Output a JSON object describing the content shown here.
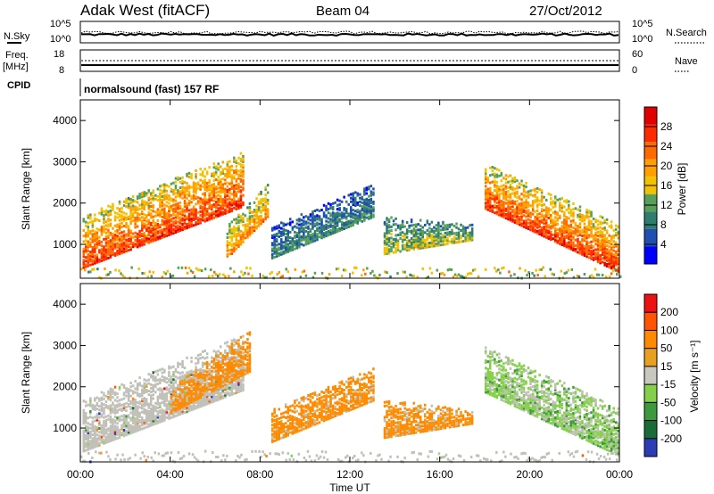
{
  "header": {
    "station": "Adak West (fitACF)",
    "beam": "Beam 04",
    "date": "27/Oct/2012"
  },
  "status_panels": {
    "nsky_label": "N.Sky",
    "nsearch_label": "N.Search",
    "left_ticks_top": [
      "10^5",
      "10^0"
    ],
    "right_ticks_top": [
      "10^5",
      "10^0"
    ],
    "freq_label": "Freq.",
    "freq_unit": "[MHz]",
    "freq_ticks": [
      "18",
      "8"
    ],
    "nave_label": "Nave",
    "nave_ticks": [
      "60",
      "0"
    ],
    "cpid_label": "CPID",
    "cpid_value": "normalsound (fast) 157 RF"
  },
  "colors": {
    "power_scale": [
      "#0000ff",
      "#1f4fb0",
      "#2e7d6e",
      "#57a05a",
      "#f2c200",
      "#ffa000",
      "#ff6a00",
      "#ff2a00",
      "#e00000"
    ],
    "velocity_scale": [
      "#2c3cb5",
      "#1a6b3a",
      "#3c9a3c",
      "#84d04a",
      "#c8c8c0",
      "#e8a020",
      "#ff8a00",
      "#ff5500",
      "#ee1111"
    ],
    "ground_scatter": "#c0c0b8"
  },
  "chart_data": [
    {
      "type": "heatmap",
      "panel": "power",
      "ylabel": "Slant Range [km]",
      "xlabel": "",
      "x_ticks": [
        "00:00",
        "04:00",
        "08:00",
        "12:00",
        "16:00",
        "20:00",
        "00:00"
      ],
      "xlim_hours": [
        0,
        24
      ],
      "y_ticks": [
        1000,
        2000,
        3000,
        4000
      ],
      "ylim": [
        180,
        4500
      ],
      "colorbar": {
        "label": "Power [dB]",
        "ticks": [
          4,
          8,
          12,
          16,
          20,
          24,
          28
        ]
      },
      "regions": [
        {
          "t0": 0.0,
          "t1": 7.2,
          "r0_start": 450,
          "r0_end": 1950,
          "r1_start": 1700,
          "r1_end": 3300,
          "level": 0.8
        },
        {
          "t0": 6.5,
          "t1": 8.3,
          "r0_start": 700,
          "r0_end": 1700,
          "r1_start": 1500,
          "r1_end": 2500,
          "level": 0.65
        },
        {
          "t0": 8.5,
          "t1": 13.0,
          "r0_start": 700,
          "r0_end": 1700,
          "r1_start": 1500,
          "r1_end": 2500,
          "level": 0.3
        },
        {
          "t0": 13.5,
          "t1": 17.5,
          "r0_start": 800,
          "r0_end": 1150,
          "r1_start": 1700,
          "r1_end": 1500,
          "level": 0.45
        },
        {
          "t0": 18.0,
          "t1": 24.0,
          "r0_start": 1900,
          "r0_end": 350,
          "r1_start": 3000,
          "r1_end": 1500,
          "level": 0.8
        }
      ]
    },
    {
      "type": "heatmap",
      "panel": "velocity",
      "ylabel": "Slant Range [km]",
      "xlabel": "Time UT",
      "x_ticks": [
        "00:00",
        "04:00",
        "08:00",
        "12:00",
        "16:00",
        "20:00",
        "00:00"
      ],
      "xlim_hours": [
        0,
        24
      ],
      "y_ticks": [
        1000,
        2000,
        3000,
        4000
      ],
      "ylim": [
        180,
        4500
      ],
      "colorbar": {
        "label": "Velocity [m s⁻¹]",
        "ticks": [
          200,
          100,
          50,
          15,
          -15,
          -50,
          -100,
          -200
        ]
      },
      "regions": [
        {
          "t0": 0.0,
          "t1": 7.2,
          "r0_start": 450,
          "r0_end": 1950,
          "r1_start": 1700,
          "r1_end": 3300,
          "kind": "ground"
        },
        {
          "t0": 4.0,
          "t1": 7.5,
          "r0_start": 1400,
          "r0_end": 2400,
          "r1_start": 2000,
          "r1_end": 3400,
          "kind": "negative"
        },
        {
          "t0": 8.5,
          "t1": 13.0,
          "r0_start": 700,
          "r0_end": 1700,
          "r1_start": 1500,
          "r1_end": 2500,
          "kind": "negative"
        },
        {
          "t0": 13.5,
          "t1": 17.5,
          "r0_start": 800,
          "r0_end": 1150,
          "r1_start": 1700,
          "r1_end": 1500,
          "kind": "negative"
        },
        {
          "t0": 18.0,
          "t1": 24.0,
          "r0_start": 1900,
          "r0_end": 350,
          "r1_start": 3000,
          "r1_end": 1500,
          "kind": "positive"
        }
      ]
    }
  ]
}
